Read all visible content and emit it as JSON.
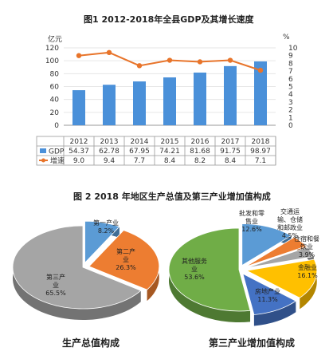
{
  "chart_data": [
    {
      "type": "bar",
      "title": "图1   2012-2018年全县GDP及其增长速度",
      "left_unit": "亿元",
      "right_unit": "%",
      "categories": [
        "2012",
        "2013",
        "2014",
        "2015",
        "2016",
        "2017",
        "2018"
      ],
      "left_ticks": [
        "0",
        "20",
        "40",
        "60",
        "80",
        "100",
        "120"
      ],
      "right_ticks": [
        "0",
        "1",
        "2",
        "3",
        "4",
        "5",
        "6",
        "7",
        "8",
        "9",
        "10"
      ],
      "ylim": [
        0,
        120
      ],
      "y2lim": [
        0,
        10
      ],
      "series": [
        {
          "name": "GDP",
          "kind": "bar",
          "color": "#4a90d9",
          "values": [
            54.37,
            62.78,
            67.95,
            74.21,
            81.68,
            91.75,
            98.97
          ],
          "display": [
            "54.37",
            "62.78",
            "67.95",
            "74.21",
            "81.68",
            "91.75",
            "98.97"
          ]
        },
        {
          "name": "增速",
          "kind": "line",
          "color": "#e8742a",
          "axis": "right",
          "values": [
            9.0,
            9.4,
            7.7,
            8.4,
            8.2,
            8.4,
            7.1
          ],
          "display": [
            "9.0",
            "9.4",
            "7.7",
            "8.4",
            "8.2",
            "8.4",
            "7.1"
          ]
        }
      ]
    },
    {
      "type": "pie",
      "title": "图 2    2018 年地区生产总值及第三产业增加值构成",
      "caption": "生产总值构成",
      "slices": [
        {
          "label": "第一产业",
          "value": 8.2,
          "text": "8.2%",
          "color": "#5b9bd5"
        },
        {
          "label": "第二产业",
          "value": 26.3,
          "text": "26.3%",
          "color": "#ed7d31"
        },
        {
          "label": "第三产业",
          "value": 65.5,
          "text": "65.5%",
          "color": "#a5a5a5"
        }
      ]
    },
    {
      "type": "pie",
      "caption": "第三产业增加值构成",
      "slices": [
        {
          "label": "批发和零售业",
          "value": 12.6,
          "text": "12.6%",
          "color": "#5b9bd5"
        },
        {
          "label": "交通运输、仓储和邮政业",
          "value": 4.5,
          "text": "4.5%",
          "color": "#ed7d31"
        },
        {
          "label": "住宿和餐饮业",
          "value": 3.9,
          "text": "3.9%",
          "color": "#a5a5a5"
        },
        {
          "label": "金融业",
          "value": 16.1,
          "text": "16.1%",
          "color": "#ffc000"
        },
        {
          "label": "房地产业",
          "value": 11.3,
          "text": "11.3%",
          "color": "#4472c4"
        },
        {
          "label": "其他服务业",
          "value": 53.6,
          "text": "53.6%",
          "color": "#70ad47"
        }
      ]
    }
  ]
}
